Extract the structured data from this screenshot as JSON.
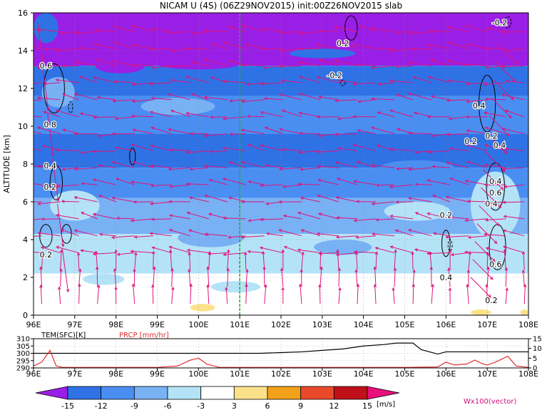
{
  "chart_data": [
    {
      "type": "heatmap",
      "title": "NICAM U (4S) (06Z29NOV2015) init:00Z26NOV2015 slab",
      "xlabel": "",
      "ylabel": "ALTITUDE [km]",
      "x_ticks": [
        "96E",
        "97E",
        "98E",
        "99E",
        "100E",
        "101E",
        "102E",
        "103E",
        "104E",
        "105E",
        "106E",
        "107E",
        "108E"
      ],
      "y_ticks": [
        "0",
        "2",
        "4",
        "6",
        "8",
        "10",
        "12",
        "14",
        "16"
      ],
      "xlim": [
        96,
        108
      ],
      "ylim": [
        0,
        16
      ],
      "grid": true,
      "marker_longitude": 101,
      "contour_labels": [
        {
          "text": "0.2",
          "x": 96.3,
          "y": 3.2
        },
        {
          "text": "0.2",
          "x": 96.4,
          "y": 6.8
        },
        {
          "text": "0.4",
          "x": 96.4,
          "y": 7.9
        },
        {
          "text": "0.8",
          "x": 96.4,
          "y": 10.1
        },
        {
          "text": "0.6",
          "x": 96.3,
          "y": 13.2
        },
        {
          "text": "0.2",
          "x": 103.5,
          "y": 14.4
        },
        {
          "text": "-0.2",
          "x": 103.3,
          "y": 12.7
        },
        {
          "text": "-0.2",
          "x": 107.3,
          "y": 15.5
        },
        {
          "text": "0.4",
          "x": 106.8,
          "y": 11.1
        },
        {
          "text": "0.2",
          "x": 107.1,
          "y": 9.5
        },
        {
          "text": "0.2",
          "x": 106.6,
          "y": 9.2
        },
        {
          "text": "0.4",
          "x": 107.3,
          "y": 9.0
        },
        {
          "text": "0.4",
          "x": 107.2,
          "y": 7.1
        },
        {
          "text": "0.6",
          "x": 107.2,
          "y": 6.5
        },
        {
          "text": "0.4",
          "x": 107.1,
          "y": 5.9
        },
        {
          "text": "0.2",
          "x": 106.0,
          "y": 5.3
        },
        {
          "text": "0.4",
          "x": 106.0,
          "y": 2.0
        },
        {
          "text": "0.6",
          "x": 107.2,
          "y": 2.7
        },
        {
          "text": "0.2",
          "x": 107.1,
          "y": 0.8
        }
      ]
    },
    {
      "type": "line",
      "label_left": "TEM(SFC)[K]",
      "label_right": "PRCP [mm/hr]",
      "left_ticks": [
        "310",
        "305",
        "300",
        "295",
        "290"
      ],
      "right_ticks": [
        "15",
        "10",
        "5",
        "0"
      ],
      "left_ylim": [
        290,
        310
      ],
      "right_ylim": [
        0,
        15
      ],
      "x_ticks": [
        "96E",
        "97E",
        "98E",
        "99E",
        "100E",
        "101E",
        "102E",
        "103E",
        "104E",
        "105E",
        "106E",
        "107E",
        "108E"
      ],
      "series": [
        {
          "name": "TEM(SFC)[K]",
          "x": [
            96,
            96.5,
            97,
            97.5,
            98,
            98.5,
            99,
            99.5,
            100,
            100.5,
            101,
            101.5,
            102,
            102.5,
            103,
            103.5,
            104,
            104.5,
            104.8,
            105.2,
            105.4,
            105.8,
            106,
            106.5,
            107,
            107.5,
            108
          ],
          "values": [
            300,
            300,
            300,
            300,
            300,
            300,
            300,
            300,
            300,
            300,
            300,
            300,
            300.5,
            301,
            302,
            303,
            305,
            306,
            307,
            307,
            302.5,
            299.5,
            301,
            301,
            301,
            301,
            301
          ]
        },
        {
          "name": "PRCP [mm/hr]",
          "x": [
            96,
            96.2,
            96.4,
            96.55,
            96.7,
            97,
            97.5,
            98,
            98.5,
            99,
            99.5,
            99.8,
            100,
            100.2,
            100.5,
            101,
            102,
            103,
            104,
            105,
            105.8,
            106,
            106.2,
            106.5,
            106.7,
            106.9,
            107,
            107.2,
            107.5,
            107.7,
            108
          ],
          "values": [
            1,
            3,
            9,
            1,
            0.3,
            0.3,
            0.3,
            0.3,
            0.3,
            0.3,
            1,
            4,
            5,
            2,
            0.3,
            0.3,
            0.3,
            0.3,
            0.3,
            0.3,
            0.5,
            3,
            1.5,
            2,
            4,
            2,
            1.5,
            3,
            6,
            1,
            0.3
          ]
        }
      ]
    },
    {
      "type": "colorbar",
      "ticks": [
        "-15",
        "-12",
        "-9",
        "-6",
        "-3",
        "3",
        "6",
        "9",
        "12",
        "15"
      ],
      "colors": [
        "#9a1fe6",
        "#2f72e6",
        "#4a8ef2",
        "#79b1f5",
        "#b4e3f7",
        "#ffffff",
        "#fbe28a",
        "#f4a11a",
        "#ea4a2a",
        "#c0101a",
        "#e8107a"
      ],
      "unit": "[m/s]",
      "vector_note": "Wx100(vector)"
    }
  ]
}
